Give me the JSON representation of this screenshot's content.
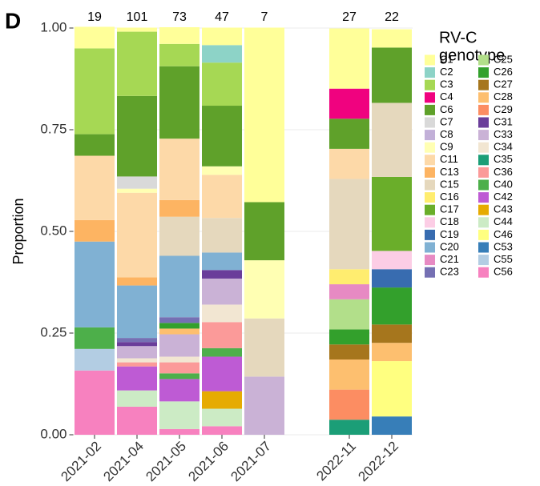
{
  "chart_data": {
    "type": "stacked_bar",
    "panel_label": "D",
    "ylabel": "Proportion",
    "legend_title": [
      "RV-C",
      "genotype"
    ],
    "categories": [
      "2021-02",
      "2021-04",
      "2021-05",
      "2021-06",
      "2021-07",
      null,
      "2022-11",
      "2022-12"
    ],
    "counts": [
      19,
      101,
      73,
      47,
      7,
      null,
      27,
      22
    ],
    "ylim": [
      0,
      1
    ],
    "yticks": [
      {
        "value": 0,
        "label": "0.00"
      },
      {
        "value": 0.25,
        "label": "0.25"
      },
      {
        "value": 0.5,
        "label": "0.50"
      },
      {
        "value": 0.75,
        "label": "0.75"
      },
      {
        "value": 1,
        "label": "1.00"
      }
    ],
    "grid": true,
    "series": [
      {
        "name": "C1",
        "color": "#FFFF99",
        "values": [
          0.053,
          0.01,
          0.041,
          0.043,
          0.429,
          null,
          0.148,
          0.045
        ]
      },
      {
        "name": "C2",
        "color": "#8DD3C7",
        "values": [
          0,
          0,
          0,
          0.043,
          0,
          null,
          0,
          0
        ]
      },
      {
        "name": "C3",
        "color": "#A6D854",
        "values": [
          0.211,
          0.158,
          0.055,
          0.106,
          0,
          null,
          0,
          0
        ]
      },
      {
        "name": "C4",
        "color": "#F0027F",
        "values": [
          0,
          0,
          0,
          0,
          0,
          null,
          0.074,
          0
        ]
      },
      {
        "name": "C6",
        "color": "#5FA12A",
        "values": [
          0.053,
          0.198,
          0.178,
          0.149,
          0.143,
          null,
          0.074,
          0.136
        ]
      },
      {
        "name": "C7",
        "color": "#D9D9D9",
        "values": [
          0,
          0.03,
          0,
          0,
          0,
          null,
          0,
          0
        ]
      },
      {
        "name": "C8",
        "color": "#C2B0D8",
        "values": [
          0,
          0,
          0,
          0,
          0,
          null,
          0,
          0
        ]
      },
      {
        "name": "C9",
        "color": "#FFFFB3",
        "values": [
          0,
          0.01,
          0,
          0.021,
          0.143,
          null,
          0,
          0
        ]
      },
      {
        "name": "C11",
        "color": "#FDD9A8",
        "values": [
          0.158,
          0.208,
          0.151,
          0.106,
          0,
          null,
          0.074,
          0
        ]
      },
      {
        "name": "C13",
        "color": "#FDB462",
        "values": [
          0.053,
          0.02,
          0.041,
          0,
          0,
          null,
          0,
          0
        ]
      },
      {
        "name": "C15",
        "color": "#E5D8BD",
        "values": [
          0,
          0,
          0.096,
          0.085,
          0.143,
          null,
          0.222,
          0.182
        ]
      },
      {
        "name": "C16",
        "color": "#FFED6F",
        "values": [
          0,
          0,
          0,
          0,
          0,
          null,
          0.037,
          0
        ]
      },
      {
        "name": "C17",
        "color": "#6AAE2A",
        "values": [
          0,
          0,
          0,
          0,
          0,
          null,
          0,
          0.182
        ]
      },
      {
        "name": "C18",
        "color": "#FCCDE5",
        "values": [
          0,
          0,
          0,
          0,
          0,
          null,
          0,
          0.045
        ]
      },
      {
        "name": "C19",
        "color": "#386CB0",
        "values": [
          0,
          0,
          0,
          0,
          0,
          null,
          0,
          0.045
        ]
      },
      {
        "name": "C20",
        "color": "#80B1D3",
        "values": [
          0.211,
          0.129,
          0.151,
          0.043,
          0,
          null,
          0,
          0
        ]
      },
      {
        "name": "C21",
        "color": "#E78AC3",
        "values": [
          0,
          0,
          0,
          0,
          0,
          null,
          0.037,
          0
        ]
      },
      {
        "name": "C23",
        "color": "#7570B3",
        "values": [
          0,
          0.01,
          0.014,
          0,
          0,
          null,
          0,
          0
        ]
      },
      {
        "name": "C25",
        "color": "#B2DF8A",
        "values": [
          0,
          0,
          0,
          0,
          0,
          null,
          0.074,
          0
        ]
      },
      {
        "name": "C26",
        "color": "#33A02C",
        "values": [
          0,
          0,
          0.014,
          0,
          0,
          null,
          0.037,
          0.091
        ]
      },
      {
        "name": "C27",
        "color": "#A6761D",
        "values": [
          0,
          0,
          0,
          0,
          0,
          null,
          0.037,
          0.045
        ]
      },
      {
        "name": "C28",
        "color": "#FDBF6F",
        "values": [
          0,
          0,
          0.014,
          0,
          0,
          null,
          0.074,
          0.045
        ]
      },
      {
        "name": "C29",
        "color": "#FC8D62",
        "values": [
          0,
          0,
          0,
          0,
          0,
          null,
          0.074,
          0
        ]
      },
      {
        "name": "C31",
        "color": "#6A3D9A",
        "values": [
          0,
          0.01,
          0,
          0.021,
          0,
          null,
          0,
          0
        ]
      },
      {
        "name": "C33",
        "color": "#CAB2D6",
        "values": [
          0,
          0.03,
          0.055,
          0.064,
          0.143,
          null,
          0,
          0
        ]
      },
      {
        "name": "C34",
        "color": "#F2E6D2",
        "values": [
          0,
          0.01,
          0.014,
          0.043,
          0,
          null,
          0,
          0
        ]
      },
      {
        "name": "C35",
        "color": "#1B9E77",
        "values": [
          0,
          0,
          0,
          0,
          0,
          null,
          0.037,
          0
        ]
      },
      {
        "name": "C36",
        "color": "#FB9A99",
        "values": [
          0,
          0.01,
          0.027,
          0.064,
          0,
          null,
          0,
          0
        ]
      },
      {
        "name": "C40",
        "color": "#4DAF4A",
        "values": [
          0.053,
          0,
          0.014,
          0.021,
          0,
          null,
          0,
          0
        ]
      },
      {
        "name": "C42",
        "color": "#BE5BD4",
        "values": [
          0,
          0.059,
          0.055,
          0.085,
          0,
          null,
          0,
          0
        ]
      },
      {
        "name": "C43",
        "color": "#E6AB02",
        "values": [
          0,
          0,
          0,
          0.043,
          0,
          null,
          0,
          0
        ]
      },
      {
        "name": "C44",
        "color": "#CCEBC5",
        "values": [
          0,
          0.04,
          0.068,
          0.043,
          0,
          null,
          0,
          0
        ]
      },
      {
        "name": "C46",
        "color": "#FFFF80",
        "values": [
          0,
          0,
          0,
          0,
          0,
          null,
          0,
          0.136
        ]
      },
      {
        "name": "C53",
        "color": "#377EB8",
        "values": [
          0,
          0,
          0,
          0,
          0,
          null,
          0,
          0.045
        ]
      },
      {
        "name": "C55",
        "color": "#B3CDE3",
        "values": [
          0.053,
          0,
          0,
          0,
          0,
          null,
          0,
          0
        ]
      },
      {
        "name": "C56",
        "color": "#F781BF",
        "values": [
          0.158,
          0.069,
          0.014,
          0.021,
          0,
          null,
          0,
          0
        ]
      }
    ]
  }
}
